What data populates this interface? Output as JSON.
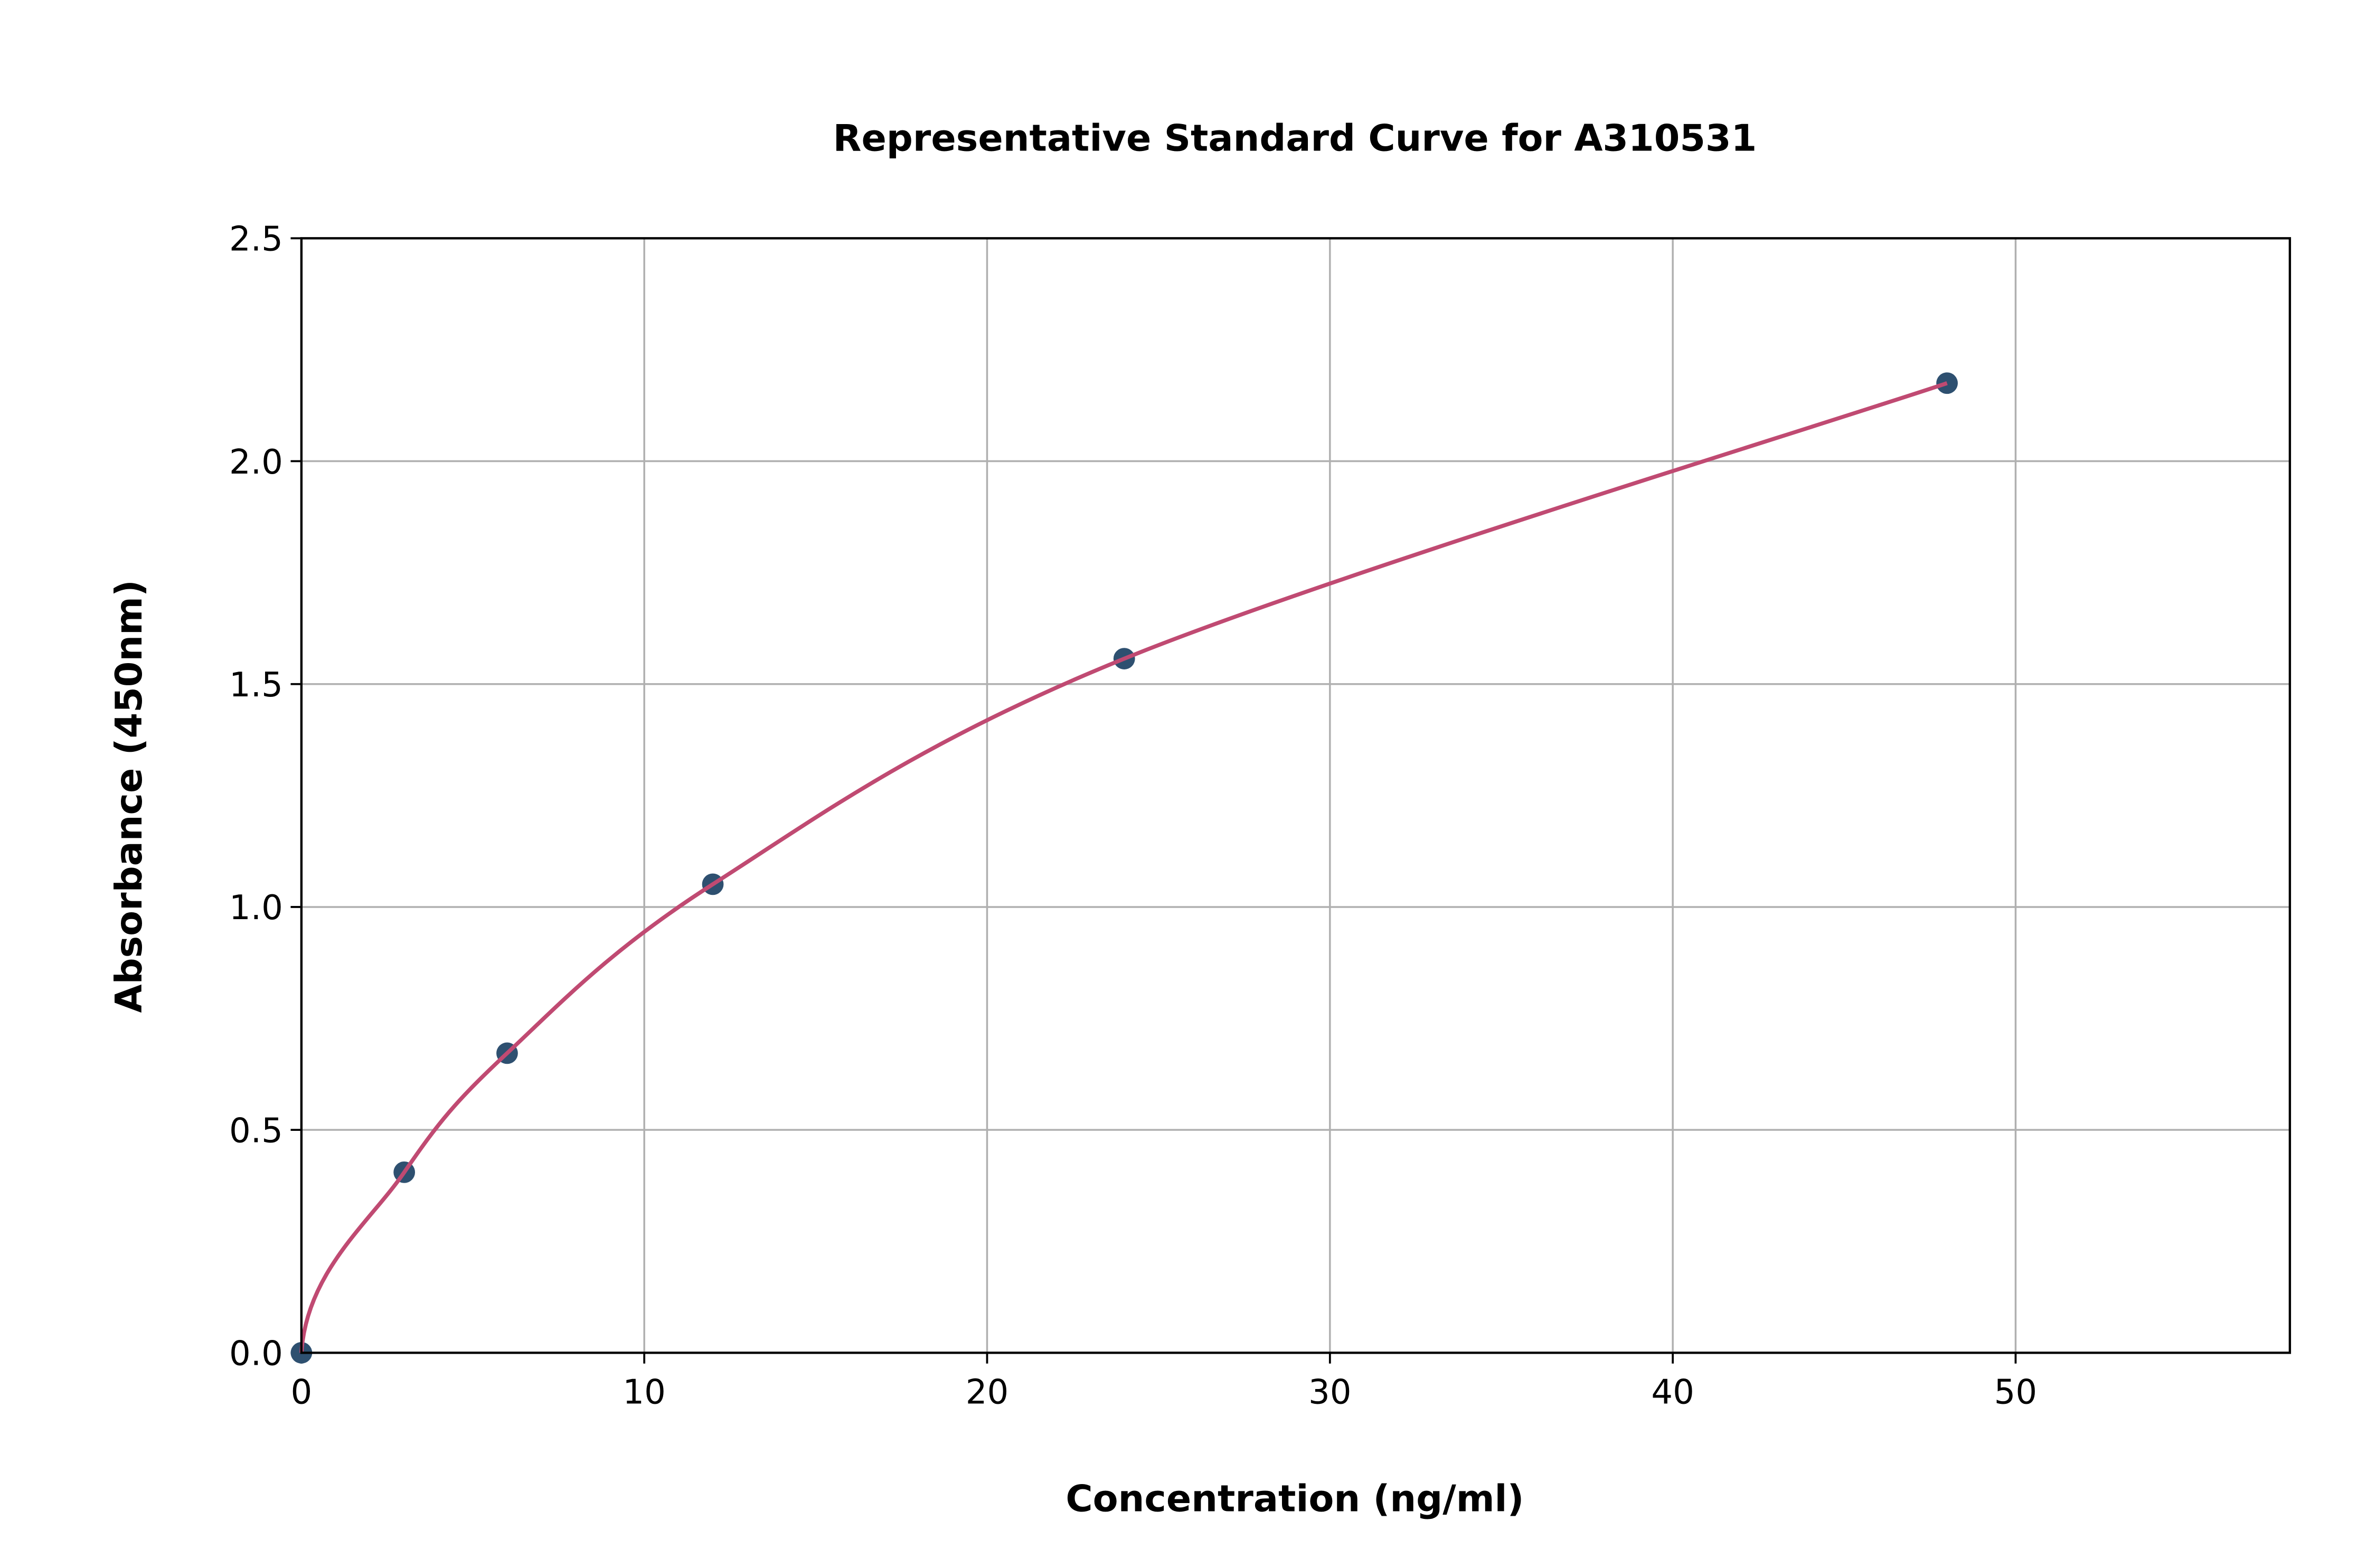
{
  "chart_data": {
    "type": "scatter",
    "title": "Representative Standard Curve for A310531",
    "xlabel": "Concentration (ng/ml)",
    "ylabel": "Absorbance (450nm)",
    "xlim": [
      0,
      58
    ],
    "ylim": [
      0,
      2.5
    ],
    "xticks": [
      "0",
      "10",
      "20",
      "30",
      "40",
      "50"
    ],
    "yticks": [
      "0.0",
      "0.5",
      "1.0",
      "1.5",
      "2.0",
      "2.5"
    ],
    "grid": true,
    "points": {
      "x": [
        0,
        3,
        6,
        12,
        24,
        48
      ],
      "y": [
        0.0,
        0.405,
        0.672,
        1.051,
        1.557,
        2.175
      ]
    },
    "fit_curve": true,
    "colors": {
      "points": "#2e5070",
      "curve": "#c04a72"
    }
  }
}
